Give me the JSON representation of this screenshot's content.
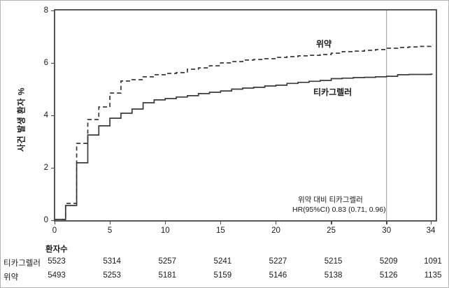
{
  "chart_data": {
    "type": "line",
    "subtype": "kaplan-meier-step",
    "title": "",
    "xlabel": "",
    "ylabel": "사건 발생 환자 %",
    "xlim": [
      0,
      34
    ],
    "ylim": [
      0,
      8
    ],
    "x_ticks": [
      0,
      5,
      10,
      15,
      20,
      25,
      30,
      34
    ],
    "y_ticks": [
      0,
      2,
      4,
      6,
      8
    ],
    "x_step": 1,
    "grid": false,
    "reference_line_x": 30,
    "legend_position": "inline-curve-labels",
    "series": [
      {
        "id": "placebo",
        "name": "위약",
        "line_style": "dashed",
        "values": [
          0.03,
          0.64,
          2.93,
          3.84,
          4.32,
          4.85,
          5.31,
          5.36,
          5.47,
          5.55,
          5.6,
          5.63,
          5.76,
          5.81,
          5.89,
          6.0,
          6.05,
          6.11,
          6.13,
          6.16,
          6.21,
          6.24,
          6.27,
          6.29,
          6.32,
          6.37,
          6.43,
          6.45,
          6.48,
          6.51,
          6.56,
          6.59,
          6.61,
          6.63,
          6.69
        ]
      },
      {
        "id": "ticagrelor",
        "name": "티카그렐러",
        "line_style": "solid",
        "values": [
          0.03,
          0.56,
          2.19,
          3.25,
          3.6,
          3.89,
          4.08,
          4.24,
          4.48,
          4.59,
          4.64,
          4.7,
          4.75,
          4.83,
          4.88,
          4.93,
          5.0,
          5.04,
          5.07,
          5.12,
          5.15,
          5.22,
          5.26,
          5.3,
          5.33,
          5.4,
          5.42,
          5.44,
          5.45,
          5.47,
          5.49,
          5.55,
          5.56,
          5.56,
          5.57
        ]
      }
    ],
    "annotation": {
      "line1": "위약 대비 티카그렐러",
      "line2": "HR(95%CI) 0.83 (0.71, 0.96)"
    }
  },
  "risk_table": {
    "header": "환자수",
    "columns_at_x_ticks": [
      0,
      5,
      10,
      15,
      20,
      25,
      30,
      34
    ],
    "rows": [
      {
        "label": "티카그렐러",
        "values": [
          "5523",
          "5314",
          "5257",
          "5241",
          "5227",
          "5215",
          "5209",
          "1091"
        ]
      },
      {
        "label": "위약",
        "values": [
          "5493",
          "5253",
          "5181",
          "5159",
          "5146",
          "5138",
          "5126",
          "1135"
        ]
      }
    ]
  },
  "colors": {
    "curve": "#3a3a3a",
    "frame": "#474747",
    "reference_line": "#969696",
    "text": "#1a1a1a",
    "background": "#ffffff"
  }
}
